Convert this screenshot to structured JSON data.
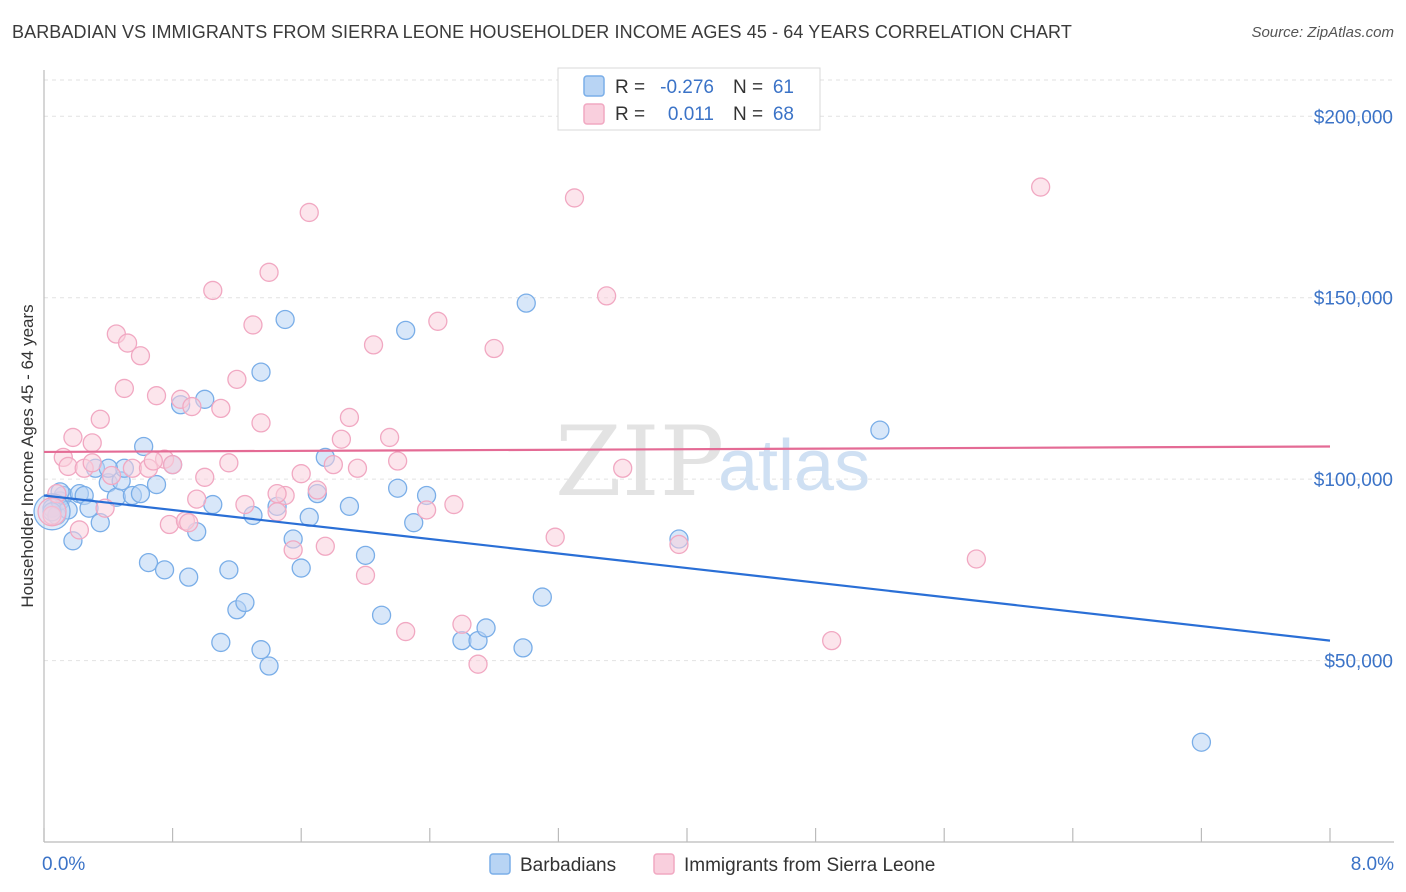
{
  "chart_data": {
    "type": "scatter",
    "title": "BARBADIAN VS IMMIGRANTS FROM SIERRA LEONE HOUSEHOLDER INCOME AGES 45 - 64 YEARS CORRELATION CHART",
    "source": "Source: ZipAtlas.com",
    "ylabel": "Householder Income Ages 45 - 64 years",
    "xlim": [
      0,
      8
    ],
    "ylim": [
      0,
      210000
    ],
    "x_tick_labels": [
      "0.0%",
      "8.0%"
    ],
    "y_ticks": [
      {
        "value": 50000,
        "label": "$50,000"
      },
      {
        "value": 100000,
        "label": "$100,000"
      },
      {
        "value": 150000,
        "label": "$150,000"
      },
      {
        "value": 200000,
        "label": "$200,000"
      }
    ],
    "watermark": {
      "zip": "ZIP",
      "atlas": "atlas"
    },
    "legend_top": [
      {
        "r_label": "R =",
        "r_value": "-0.276",
        "n_label": "N =",
        "n_value": "61"
      },
      {
        "r_label": "R =",
        "r_value": "0.011",
        "n_label": "N =",
        "n_value": "68"
      }
    ],
    "series": [
      {
        "name": "Barbadians",
        "color": "#7aaee8",
        "fill": "#b8d4f4",
        "line_color": "#2a6fd6",
        "trend": {
          "x0": 0.0,
          "y0": 95500,
          "x1": 8.0,
          "y1": 55500
        },
        "points": [
          [
            0.05,
            92000
          ],
          [
            0.08,
            90000
          ],
          [
            0.1,
            94000
          ],
          [
            0.12,
            95500
          ],
          [
            0.15,
            91500
          ],
          [
            0.18,
            83000
          ],
          [
            0.22,
            96000
          ],
          [
            0.25,
            95500
          ],
          [
            0.28,
            92000
          ],
          [
            0.32,
            103000
          ],
          [
            0.35,
            88000
          ],
          [
            0.4,
            99000
          ],
          [
            0.45,
            95000
          ],
          [
            0.48,
            99500
          ],
          [
            0.5,
            103000
          ],
          [
            0.55,
            95500
          ],
          [
            0.6,
            96000
          ],
          [
            0.65,
            77000
          ],
          [
            0.7,
            98500
          ],
          [
            0.75,
            75000
          ],
          [
            0.8,
            104000
          ],
          [
            0.85,
            120500
          ],
          [
            0.9,
            73000
          ],
          [
            0.95,
            85500
          ],
          [
            1.0,
            122000
          ],
          [
            1.05,
            93000
          ],
          [
            1.1,
            55000
          ],
          [
            1.15,
            75000
          ],
          [
            1.2,
            64000
          ],
          [
            1.25,
            66000
          ],
          [
            1.3,
            90000
          ],
          [
            1.35,
            53000
          ],
          [
            1.4,
            48500
          ],
          [
            1.45,
            92500
          ],
          [
            1.5,
            144000
          ],
          [
            1.55,
            83500
          ],
          [
            1.6,
            75500
          ],
          [
            1.65,
            89500
          ],
          [
            1.7,
            96000
          ],
          [
            1.75,
            106000
          ],
          [
            1.9,
            92500
          ],
          [
            2.0,
            79000
          ],
          [
            2.1,
            62500
          ],
          [
            2.2,
            97500
          ],
          [
            2.25,
            141000
          ],
          [
            2.3,
            88000
          ],
          [
            2.38,
            95500
          ],
          [
            2.6,
            55500
          ],
          [
            2.7,
            55500
          ],
          [
            2.75,
            59000
          ],
          [
            2.98,
            53500
          ],
          [
            3.0,
            148500
          ],
          [
            3.1,
            67500
          ],
          [
            1.35,
            129500
          ],
          [
            0.62,
            109000
          ],
          [
            3.95,
            83500
          ],
          [
            5.2,
            113500
          ],
          [
            7.2,
            27500
          ],
          [
            0.4,
            103000
          ],
          [
            0.1,
            96500
          ],
          [
            0.05,
            91000
          ]
        ]
      },
      {
        "name": "Immigrants from Sierra Leone",
        "color": "#f1a8c2",
        "fill": "#f9cfdd",
        "line_color": "#e46b95",
        "trend": {
          "x0": 0.0,
          "y0": 107500,
          "x1": 8.0,
          "y1": 109000
        },
        "points": [
          [
            0.05,
            90000
          ],
          [
            0.08,
            96000
          ],
          [
            0.12,
            106000
          ],
          [
            0.15,
            103500
          ],
          [
            0.18,
            111500
          ],
          [
            0.22,
            86000
          ],
          [
            0.25,
            103000
          ],
          [
            0.3,
            110000
          ],
          [
            0.35,
            116500
          ],
          [
            0.38,
            92000
          ],
          [
            0.42,
            101000
          ],
          [
            0.45,
            140000
          ],
          [
            0.5,
            125000
          ],
          [
            0.52,
            137500
          ],
          [
            0.55,
            103000
          ],
          [
            0.6,
            134000
          ],
          [
            0.65,
            103000
          ],
          [
            0.7,
            123000
          ],
          [
            0.75,
            105500
          ],
          [
            0.78,
            87500
          ],
          [
            0.8,
            104000
          ],
          [
            0.85,
            122000
          ],
          [
            0.88,
            88500
          ],
          [
            0.92,
            120000
          ],
          [
            0.95,
            94500
          ],
          [
            1.0,
            100500
          ],
          [
            1.05,
            152000
          ],
          [
            1.1,
            119500
          ],
          [
            1.15,
            104500
          ],
          [
            1.2,
            127500
          ],
          [
            1.25,
            93000
          ],
          [
            1.3,
            142500
          ],
          [
            1.35,
            115500
          ],
          [
            1.4,
            157000
          ],
          [
            1.45,
            91000
          ],
          [
            1.5,
            95500
          ],
          [
            1.55,
            80500
          ],
          [
            1.6,
            101500
          ],
          [
            1.65,
            173500
          ],
          [
            1.7,
            97000
          ],
          [
            1.75,
            81500
          ],
          [
            1.8,
            104000
          ],
          [
            1.85,
            111000
          ],
          [
            1.9,
            117000
          ],
          [
            1.95,
            103000
          ],
          [
            2.0,
            73500
          ],
          [
            2.05,
            137000
          ],
          [
            2.15,
            111500
          ],
          [
            2.2,
            105000
          ],
          [
            2.25,
            58000
          ],
          [
            2.38,
            91500
          ],
          [
            2.45,
            143500
          ],
          [
            2.55,
            93000
          ],
          [
            2.6,
            60000
          ],
          [
            2.7,
            49000
          ],
          [
            2.8,
            136000
          ],
          [
            3.18,
            84000
          ],
          [
            3.3,
            177500
          ],
          [
            3.5,
            150500
          ],
          [
            3.6,
            103000
          ],
          [
            3.95,
            82000
          ],
          [
            4.9,
            55500
          ],
          [
            5.8,
            78000
          ],
          [
            6.2,
            180500
          ],
          [
            0.3,
            104500
          ],
          [
            0.9,
            88000
          ],
          [
            1.45,
            96000
          ],
          [
            0.68,
            105000
          ]
        ]
      }
    ],
    "legend_bottom": [
      {
        "name": "Barbadians"
      },
      {
        "name": "Immigrants from Sierra Leone"
      }
    ]
  }
}
